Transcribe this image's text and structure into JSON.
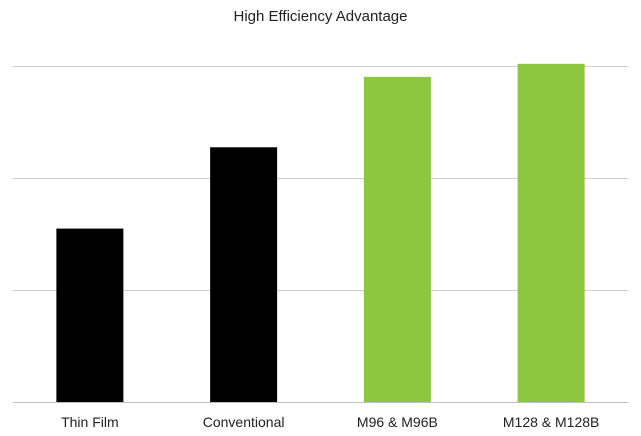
{
  "chart_data": {
    "type": "bar",
    "title": "High Efficiency Advantage",
    "xlabel": "",
    "ylabel": "",
    "categories": [
      "Thin Film",
      "Conventional",
      "M96 & M96B",
      "M128 & M128B"
    ],
    "values": [
      1.6,
      2.35,
      3.0,
      3.12
    ],
    "ylim": [
      0,
      3.1
    ],
    "grid": true,
    "legend": "none",
    "colors": [
      "#000000",
      "#000000",
      "#8dc63f",
      "#8dc63f"
    ],
    "gridline_color": "#d0d0d0",
    "axis_color": "#bfbfbf"
  }
}
